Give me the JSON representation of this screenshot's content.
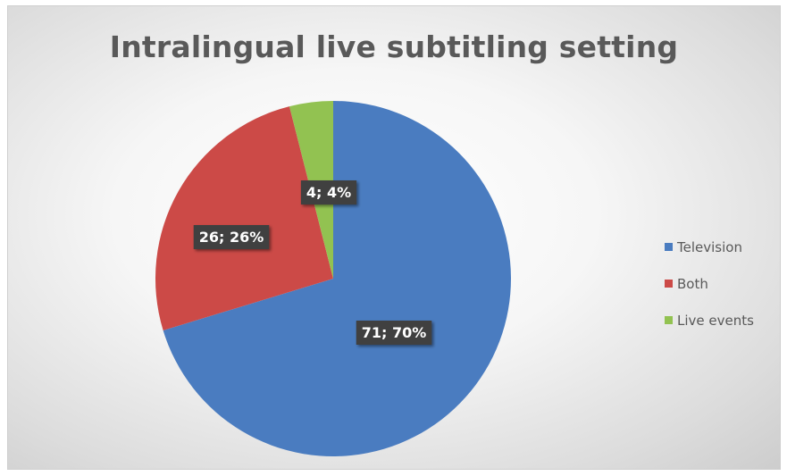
{
  "chart_data": {
    "type": "pie",
    "title": "Intralingual live subtitling setting",
    "slices": [
      {
        "name": "Television",
        "value": 71,
        "percent": 70,
        "label": "71; 70%",
        "color": "#4a7cc0"
      },
      {
        "name": "Both",
        "value": 26,
        "percent": 26,
        "label": "26; 26%",
        "color": "#cc4a47"
      },
      {
        "name": "Live events",
        "value": 4,
        "percent": 4,
        "label": "4; 4%",
        "color": "#92c251"
      }
    ],
    "legend_position": "right"
  }
}
